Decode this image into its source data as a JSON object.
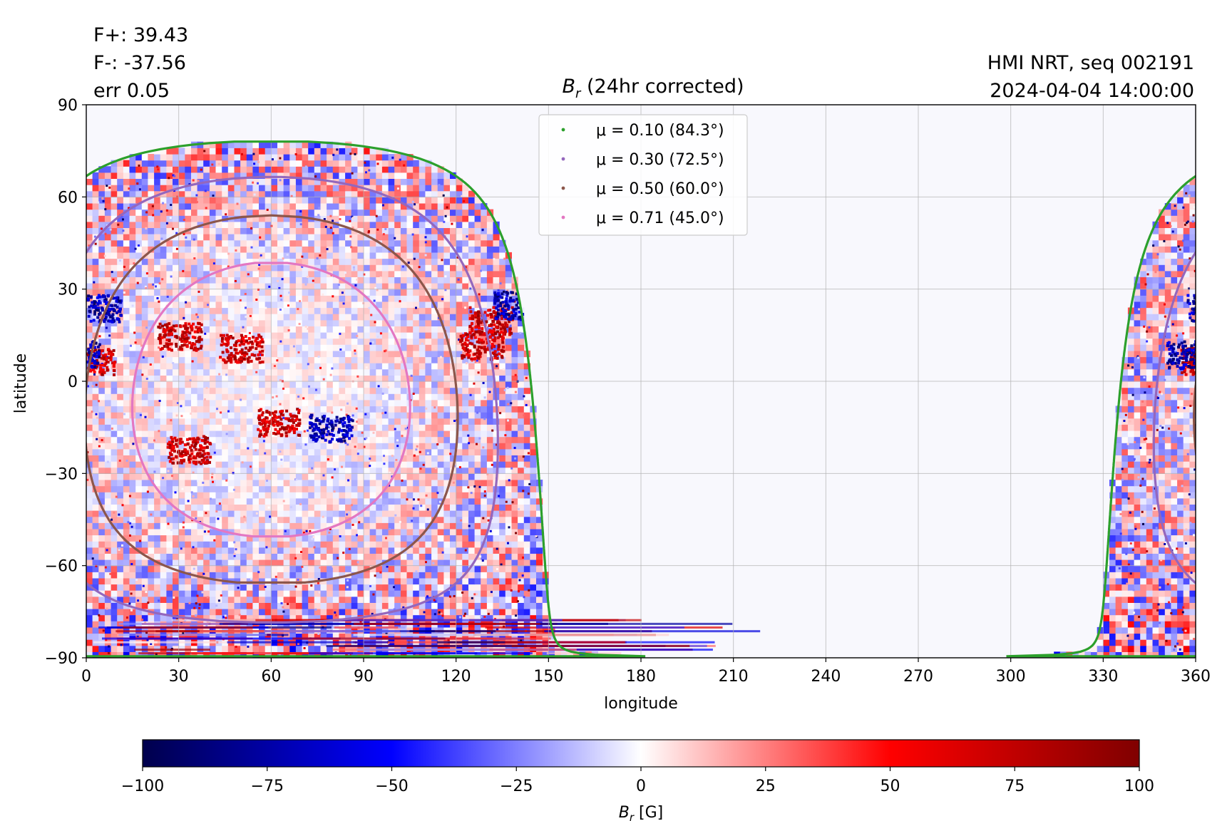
{
  "stats": {
    "flux_pos": "F+: 39.43",
    "flux_neg": "F-: -37.56",
    "err": "err 0.05"
  },
  "meta": {
    "instrument": "HMI NRT, seq 002191",
    "datetime": "2024-04-04 14:00:00"
  },
  "chart_data": {
    "type": "heatmap",
    "title": {
      "symbol": "B",
      "subscript": "r",
      "rest": " (24hr corrected)"
    },
    "xlabel": "longitude",
    "ylabel": "latitude",
    "xlim": [
      0,
      360
    ],
    "ylim": [
      -90,
      90
    ],
    "xticks": [
      0,
      30,
      60,
      90,
      120,
      150,
      180,
      210,
      240,
      270,
      300,
      330,
      360
    ],
    "yticks": [
      90,
      60,
      30,
      0,
      -30,
      -60,
      -90
    ],
    "ytick_labels": [
      "90",
      "60",
      "30",
      "0",
      "−30",
      "−60",
      "−90"
    ],
    "grid": true,
    "disk_center_lon": 60,
    "disk_center_lat": -6,
    "legend": {
      "placement": "upper center",
      "entries": [
        {
          "label_mu": "μ = 0.10 (84.3°)",
          "mu": 0.1,
          "angle": 84.3,
          "color": "#2ca02c"
        },
        {
          "label_mu": "μ = 0.30 (72.5°)",
          "mu": 0.3,
          "angle": 72.5,
          "color": "#9467bd"
        },
        {
          "label_mu": "μ = 0.50 (60.0°)",
          "mu": 0.5,
          "angle": 60.0,
          "color": "#8c564b"
        },
        {
          "label_mu": "μ = 0.71 (45.0°)",
          "mu": 0.71,
          "angle": 45.0,
          "color": "#e377c2"
        }
      ]
    },
    "colorbar": {
      "min": -100,
      "max": 100,
      "ticks": [
        -100,
        -75,
        -50,
        -25,
        0,
        25,
        50,
        75,
        100
      ],
      "tick_labels": [
        "−100",
        "−75",
        "−50",
        "−25",
        "0",
        "25",
        "50",
        "75",
        "100"
      ],
      "label": {
        "symbol": "B",
        "subscript": "r",
        "unit": " [G]"
      },
      "colormap": "seismic"
    },
    "active_regions": [
      {
        "lon": 30,
        "lat": 15,
        "sign": "+"
      },
      {
        "lon": 50,
        "lat": 11,
        "sign": "+"
      },
      {
        "lon": 33,
        "lat": -22,
        "sign": "+"
      },
      {
        "lon": 62,
        "lat": -13,
        "sign": "+"
      },
      {
        "lon": 79,
        "lat": -15,
        "sign": "-"
      },
      {
        "lon": 131,
        "lat": 20,
        "sign": "+"
      },
      {
        "lon": 128,
        "lat": 12,
        "sign": "+"
      },
      {
        "lon": 2,
        "lat": 7,
        "sign": "+"
      },
      {
        "lon": 4,
        "lat": 24,
        "sign": "-"
      },
      {
        "lon": 357,
        "lat": 9,
        "sign": "-"
      },
      {
        "lon": 139,
        "lat": 25,
        "sign": "-"
      }
    ]
  }
}
